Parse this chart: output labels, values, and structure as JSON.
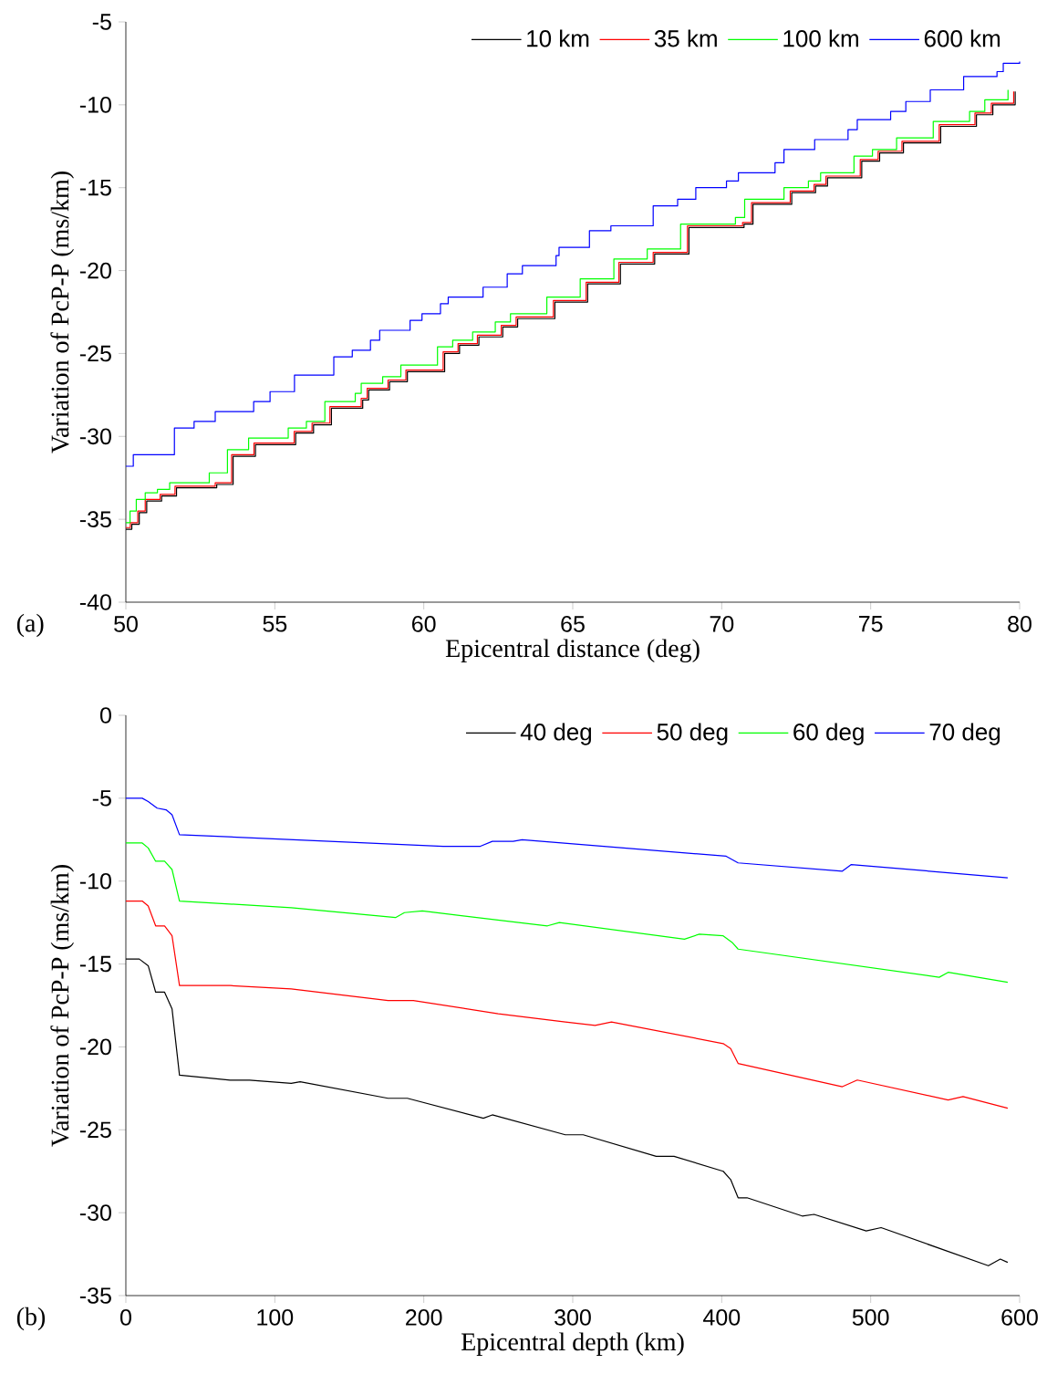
{
  "chart_data": [
    {
      "type": "step",
      "xlabel": "Epicentral distance (deg)",
      "ylabel": "Variation of PcP-P (ms/km)",
      "xlim": [
        50,
        80
      ],
      "ylim": [
        -40,
        -5
      ],
      "xticks": [
        50,
        55,
        60,
        65,
        70,
        75,
        80
      ],
      "yticks": [
        -40,
        -35,
        -30,
        -25,
        -20,
        -15,
        -10,
        -5
      ],
      "legend": "top right",
      "annotations": [
        "(a)"
      ],
      "series": [
        {
          "name": "10 km",
          "color": "#000000",
          "x": [
            50,
            50.2,
            50.45,
            50.7,
            51.2,
            51.7,
            53.05,
            53.6,
            54.35,
            55.7,
            56.3,
            56.9,
            57.95,
            58.15,
            58.85,
            59.45,
            60.7,
            61.2,
            61.85,
            62.65,
            63.15,
            64.4,
            65.5,
            66.6,
            67.75,
            68.9,
            70.75,
            71.05,
            72.35,
            73.15,
            73.55,
            74.7,
            75.3,
            76.1,
            77.35,
            78.55,
            79.1,
            79.85
          ],
          "values": [
            -35.6,
            -35.3,
            -34.6,
            -33.9,
            -33.6,
            -33.1,
            -32.9,
            -31.2,
            -30.5,
            -29.8,
            -29.3,
            -28.3,
            -27.8,
            -27.2,
            -26.7,
            -26.1,
            -25.0,
            -24.5,
            -24.0,
            -23.4,
            -22.9,
            -21.9,
            -20.8,
            -19.6,
            -19.0,
            -17.4,
            -17.2,
            -16.0,
            -15.3,
            -14.9,
            -14.4,
            -13.4,
            -12.9,
            -12.3,
            -11.3,
            -10.6,
            -10.0,
            -9.2
          ]
        },
        {
          "name": "35 km",
          "color": "#ff0000",
          "x": [
            50,
            50.15,
            50.4,
            50.65,
            51.15,
            51.65,
            53.0,
            53.55,
            54.3,
            55.65,
            56.25,
            56.85,
            57.9,
            58.1,
            58.8,
            59.4,
            60.65,
            61.15,
            61.8,
            62.6,
            63.1,
            64.35,
            65.45,
            66.55,
            67.7,
            68.85,
            70.7,
            71.0,
            72.3,
            73.1,
            73.5,
            74.65,
            75.25,
            76.05,
            77.3,
            78.5,
            79.05,
            79.8
          ],
          "values": [
            -35.5,
            -35.2,
            -34.5,
            -33.8,
            -33.5,
            -33.0,
            -32.8,
            -31.1,
            -30.4,
            -29.7,
            -29.2,
            -28.2,
            -27.7,
            -27.1,
            -26.6,
            -26.0,
            -24.9,
            -24.4,
            -23.9,
            -23.3,
            -22.8,
            -21.8,
            -20.7,
            -19.5,
            -18.9,
            -17.3,
            -17.1,
            -15.9,
            -15.2,
            -14.8,
            -14.3,
            -13.3,
            -12.8,
            -12.2,
            -11.2,
            -10.5,
            -9.9,
            -9.2
          ]
        },
        {
          "name": "100 km",
          "color": "#00ff00",
          "x": [
            50,
            50.14,
            50.35,
            50.65,
            51.06,
            51.47,
            52.8,
            53.41,
            54.12,
            55.45,
            56.06,
            56.68,
            57.7,
            57.9,
            58.62,
            59.23,
            60.46,
            60.97,
            61.64,
            62.4,
            62.91,
            64.13,
            65.25,
            66.38,
            67.5,
            68.62,
            70.46,
            70.77,
            72.09,
            72.91,
            73.32,
            74.44,
            75.06,
            75.87,
            77.1,
            78.32,
            78.83,
            79.61
          ],
          "values": [
            -35.2,
            -34.5,
            -33.8,
            -33.4,
            -33.2,
            -32.8,
            -32.2,
            -30.8,
            -30.1,
            -29.5,
            -29.1,
            -27.9,
            -27.4,
            -26.8,
            -26.4,
            -25.7,
            -24.6,
            -24.2,
            -23.7,
            -23.1,
            -22.6,
            -21.6,
            -20.5,
            -19.3,
            -18.7,
            -17.2,
            -16.8,
            -15.7,
            -15.0,
            -14.6,
            -14.1,
            -13.1,
            -12.7,
            -12.0,
            -11.0,
            -10.4,
            -9.7,
            -9.1
          ]
        },
        {
          "name": "600 km",
          "color": "#0000ff",
          "x": [
            50,
            50.25,
            51.63,
            52.29,
            53.0,
            54.29,
            54.84,
            55.66,
            56.98,
            57.6,
            58.21,
            58.52,
            59.54,
            59.94,
            60.56,
            60.82,
            61.99,
            62.8,
            63.31,
            64.44,
            64.54,
            65.56,
            66.28,
            67.7,
            68.52,
            69.13,
            70.16,
            70.56,
            71.79,
            72.09,
            73.12,
            74.24,
            74.55,
            75.67,
            76.18,
            77.0,
            78.12,
            79.24,
            79.45,
            80
          ],
          "values": [
            -31.8,
            -31.1,
            -29.5,
            -29.1,
            -28.5,
            -27.9,
            -27.3,
            -26.3,
            -25.2,
            -24.8,
            -24.2,
            -23.6,
            -23.0,
            -22.6,
            -22.0,
            -21.6,
            -21.0,
            -20.2,
            -19.7,
            -19.1,
            -18.6,
            -17.6,
            -17.3,
            -16.1,
            -15.7,
            -15.0,
            -14.6,
            -14.1,
            -13.5,
            -12.7,
            -12.1,
            -11.5,
            -10.9,
            -10.4,
            -9.8,
            -9.1,
            -8.3,
            -8.0,
            -7.5,
            -7.4
          ]
        }
      ]
    },
    {
      "type": "line",
      "xlabel": "Epicentral depth (km)",
      "ylabel": "Variation of PcP-P (ms/km)",
      "xlim": [
        0,
        600
      ],
      "ylim": [
        -35,
        0
      ],
      "xticks": [
        0,
        100,
        200,
        300,
        400,
        500,
        600
      ],
      "yticks": [
        -35,
        -30,
        -25,
        -20,
        -15,
        -10,
        -5,
        0
      ],
      "legend": "top right",
      "annotations": [
        "(b)"
      ],
      "series": [
        {
          "name": "40 deg",
          "color": "#000000",
          "x": [
            0,
            9,
            15,
            20,
            26,
            31,
            36,
            70,
            83,
            111,
            117,
            176,
            189,
            240,
            246,
            295,
            307,
            356,
            368,
            401,
            406,
            411,
            417,
            454,
            462,
            497,
            507,
            579,
            587,
            592
          ],
          "values": [
            -14.7,
            -14.7,
            -15.1,
            -16.7,
            -16.7,
            -17.7,
            -21.7,
            -22.0,
            -22.0,
            -22.2,
            -22.1,
            -23.1,
            -23.1,
            -24.3,
            -24.1,
            -25.3,
            -25.3,
            -26.6,
            -26.6,
            -27.5,
            -28.0,
            -29.1,
            -29.1,
            -30.2,
            -30.1,
            -31.1,
            -30.9,
            -33.2,
            -32.8,
            -33.0
          ]
        },
        {
          "name": "50 deg",
          "color": "#ff0000",
          "x": [
            0,
            11,
            15,
            20,
            26,
            31,
            36,
            70,
            111,
            176,
            193,
            250,
            295,
            315,
            326,
            401,
            406,
            411,
            481,
            491,
            552,
            562,
            592
          ],
          "values": [
            -11.2,
            -11.2,
            -11.5,
            -12.7,
            -12.7,
            -13.3,
            -16.3,
            -16.3,
            -16.5,
            -17.2,
            -17.2,
            -18.0,
            -18.5,
            -18.7,
            -18.5,
            -19.8,
            -20.1,
            -21.0,
            -22.4,
            -22.0,
            -23.2,
            -23.0,
            -23.7
          ]
        },
        {
          "name": "60 deg",
          "color": "#00ff00",
          "x": [
            0,
            11,
            15,
            20,
            26,
            31,
            36,
            111,
            181,
            187,
            199,
            283,
            291,
            375,
            385,
            401,
            407,
            411,
            546,
            552,
            592
          ],
          "values": [
            -7.7,
            -7.7,
            -8.0,
            -8.8,
            -8.8,
            -9.3,
            -11.2,
            -11.6,
            -12.2,
            -11.9,
            -11.8,
            -12.7,
            -12.5,
            -13.5,
            -13.2,
            -13.3,
            -13.7,
            -14.1,
            -15.8,
            -15.5,
            -16.1
          ]
        },
        {
          "name": "70 deg",
          "color": "#0000ff",
          "x": [
            0,
            11,
            15,
            21,
            27,
            31,
            36,
            213,
            238,
            246,
            260,
            266,
            403,
            411,
            481,
            487,
            592
          ],
          "values": [
            -5.0,
            -5.0,
            -5.2,
            -5.6,
            -5.7,
            -6.0,
            -7.2,
            -7.9,
            -7.9,
            -7.6,
            -7.6,
            -7.5,
            -8.5,
            -8.9,
            -9.4,
            -9.0,
            -9.8
          ]
        }
      ]
    }
  ]
}
